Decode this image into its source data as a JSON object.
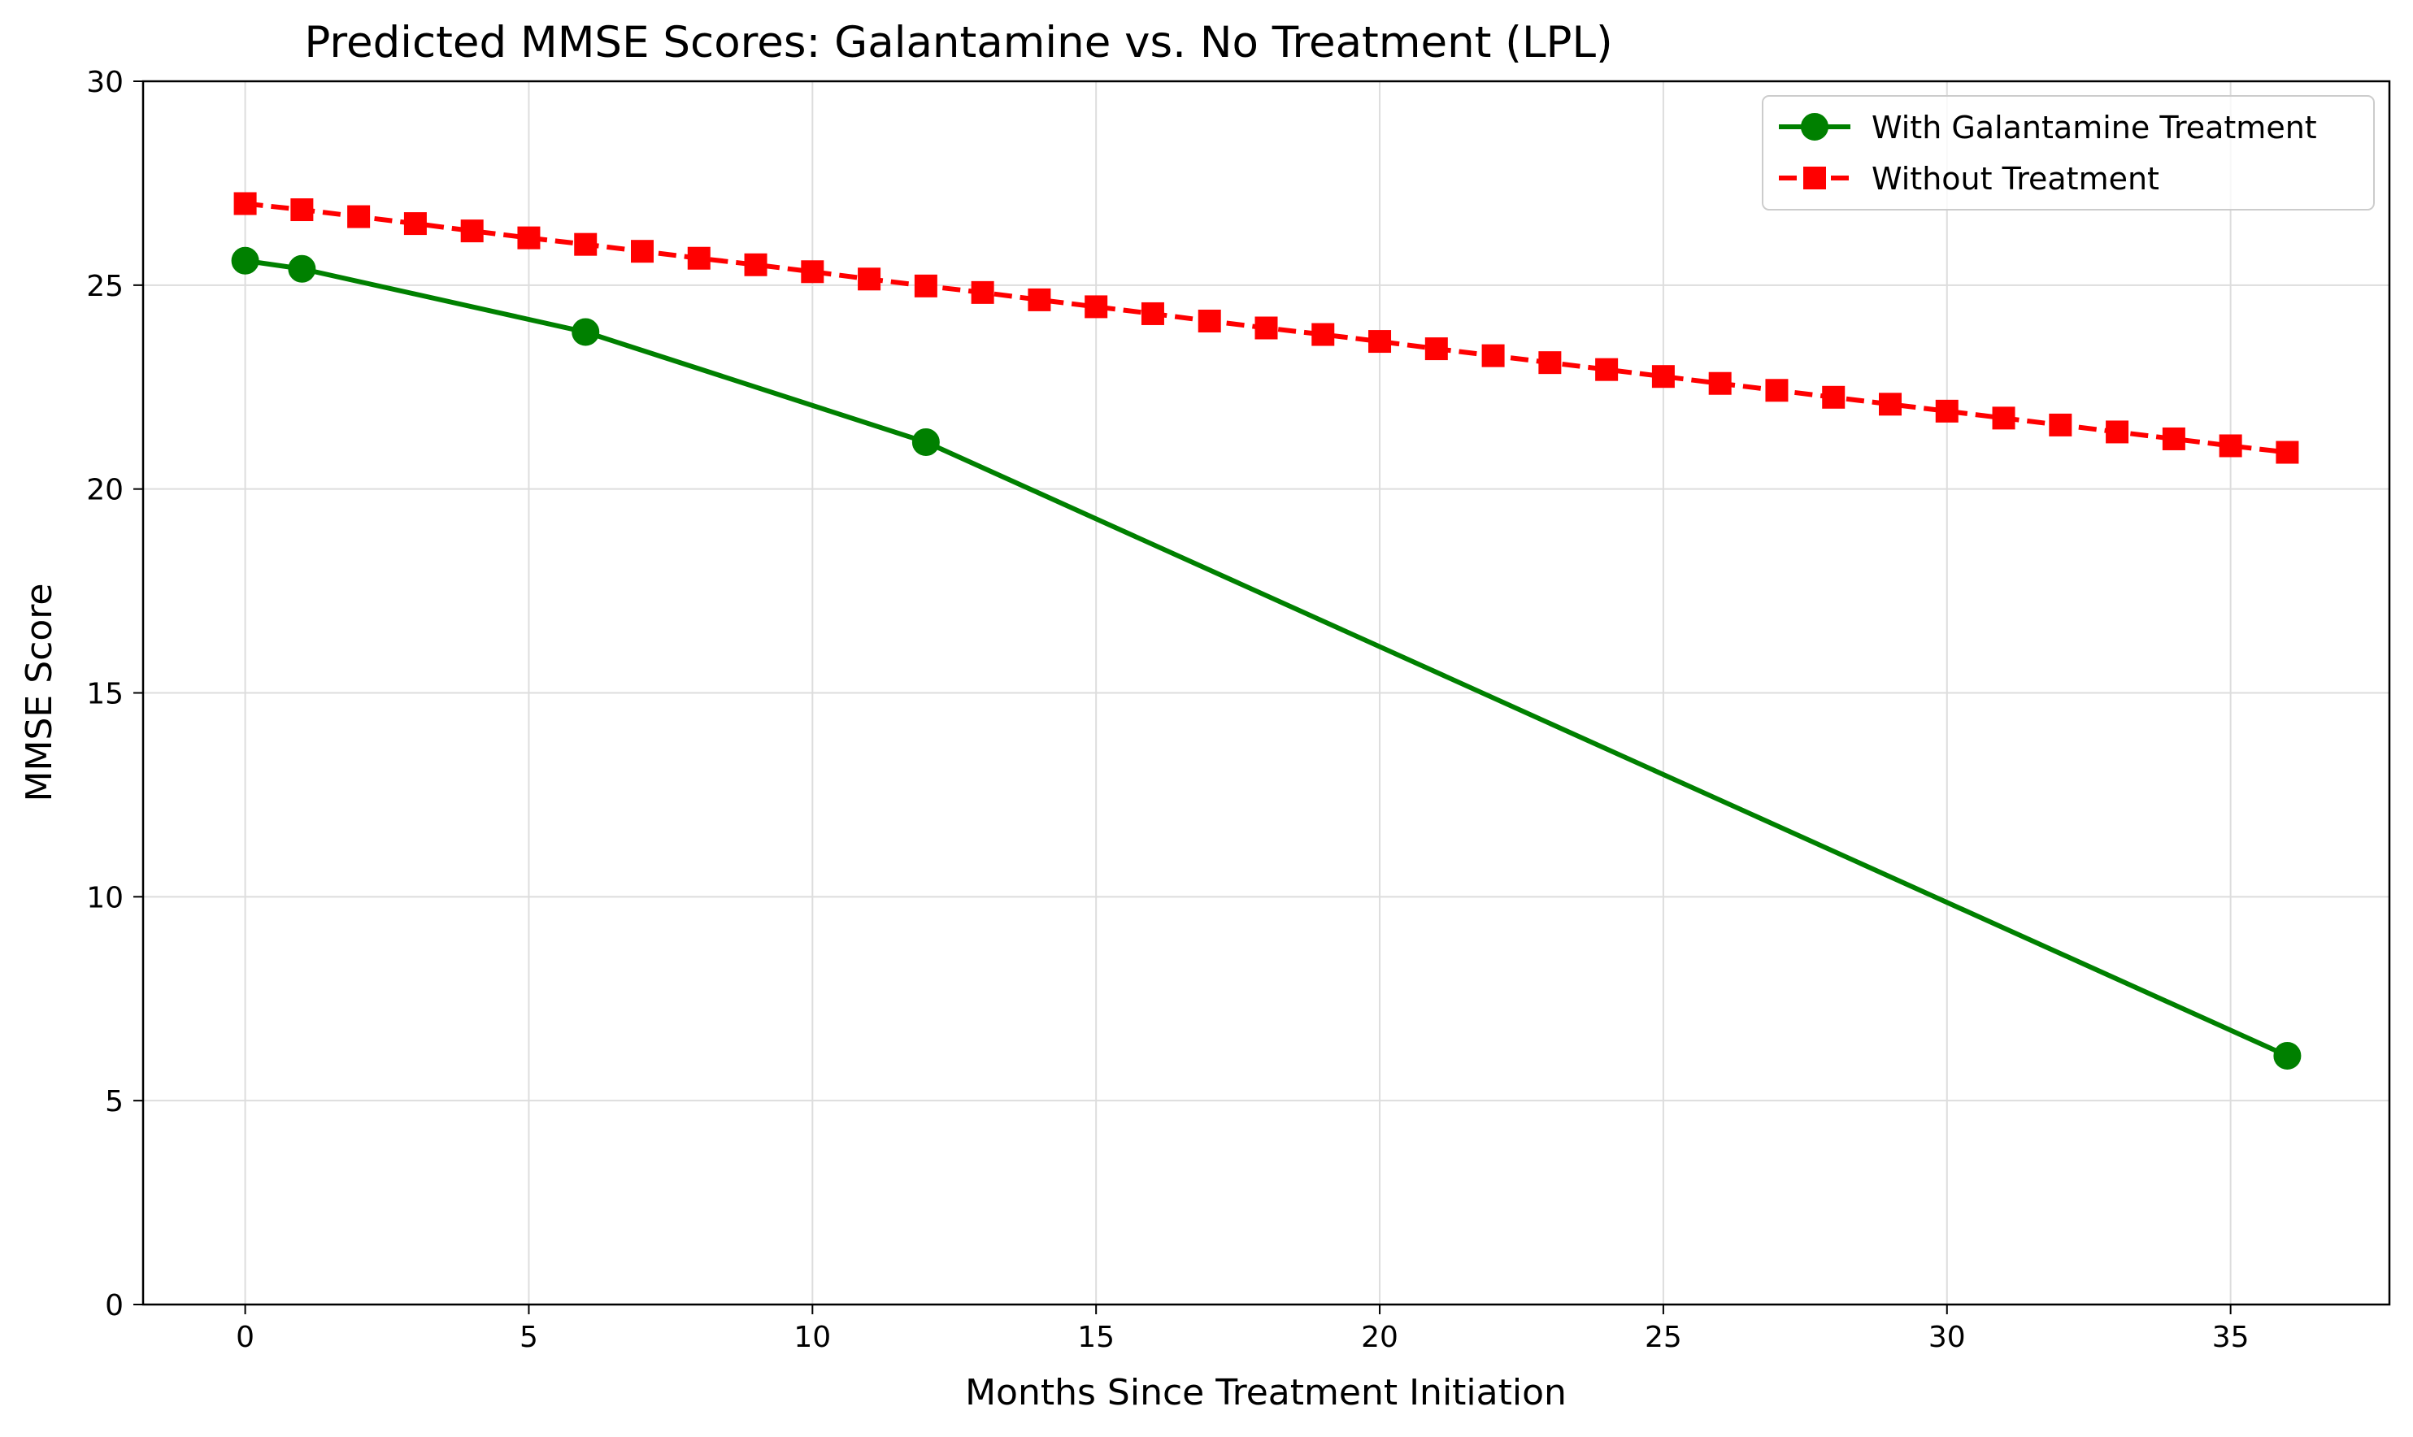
{
  "chart_data": {
    "type": "line",
    "title": "Predicted MMSE Scores: Galantamine vs. No Treatment (LPL)",
    "xlabel": "Months Since Treatment Initiation",
    "ylabel": "MMSE Score",
    "xlim": [
      -1.8,
      37.8
    ],
    "ylim": [
      0,
      30
    ],
    "xticks": [
      0,
      5,
      10,
      15,
      20,
      25,
      30,
      35
    ],
    "yticks": [
      0,
      5,
      10,
      15,
      20,
      25,
      30
    ],
    "grid": true,
    "legend_position": "top-right",
    "series": [
      {
        "name": "With Galantamine Treatment",
        "color": "#008000",
        "line_style": "solid",
        "marker": "circle",
        "x": [
          0,
          1,
          6,
          12,
          36
        ],
        "y": [
          25.6,
          25.4,
          23.85,
          21.15,
          6.1
        ]
      },
      {
        "name": "Without Treatment",
        "color": "#ff0000",
        "line_style": "dashed",
        "marker": "square",
        "x": [
          0,
          1,
          2,
          3,
          4,
          5,
          6,
          7,
          8,
          9,
          10,
          11,
          12,
          13,
          14,
          15,
          16,
          17,
          18,
          19,
          20,
          21,
          22,
          23,
          24,
          25,
          26,
          27,
          28,
          29,
          30,
          31,
          32,
          33,
          34,
          35,
          36
        ],
        "y": [
          27.0,
          26.85,
          26.68,
          26.51,
          26.33,
          26.16,
          26.0,
          25.83,
          25.66,
          25.5,
          25.33,
          25.15,
          24.98,
          24.82,
          24.64,
          24.47,
          24.3,
          24.12,
          23.95,
          23.79,
          23.62,
          23.44,
          23.27,
          23.1,
          22.93,
          22.76,
          22.59,
          22.42,
          22.25,
          22.08,
          21.91,
          21.74,
          21.57,
          21.4,
          21.23,
          21.06,
          20.9
        ]
      }
    ]
  }
}
